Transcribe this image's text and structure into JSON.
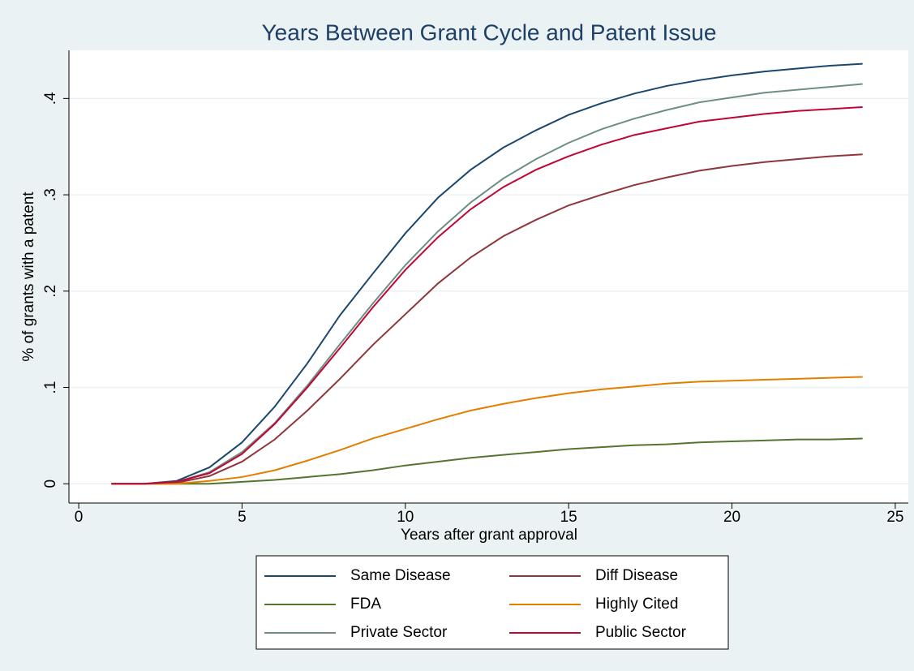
{
  "chart_data": {
    "type": "line",
    "title": "Years Between Grant Cycle and Patent Issue",
    "x_label": "Years after grant approval",
    "y_label": "% of grants with a patent",
    "x": [
      1,
      2,
      3,
      4,
      5,
      6,
      7,
      8,
      9,
      10,
      11,
      12,
      13,
      14,
      15,
      16,
      17,
      18,
      19,
      20,
      21,
      22,
      23,
      24
    ],
    "series": [
      {
        "name": "Same Disease",
        "color": "#1a476f",
        "values": [
          0,
          0,
          0.003,
          0.017,
          0.043,
          0.08,
          0.125,
          0.175,
          0.218,
          0.26,
          0.297,
          0.326,
          0.349,
          0.367,
          0.383,
          0.395,
          0.405,
          0.413,
          0.419,
          0.424,
          0.428,
          0.431,
          0.434,
          0.436
        ]
      },
      {
        "name": "Diff Disease",
        "color": "#90353b",
        "values": [
          0,
          0,
          0.001,
          0.008,
          0.023,
          0.046,
          0.076,
          0.109,
          0.144,
          0.176,
          0.208,
          0.235,
          0.257,
          0.274,
          0.289,
          0.3,
          0.31,
          0.318,
          0.325,
          0.33,
          0.334,
          0.337,
          0.34,
          0.342
        ]
      },
      {
        "name": "FDA",
        "color": "#55752f",
        "values": [
          0,
          0,
          0,
          0,
          0.002,
          0.004,
          0.007,
          0.01,
          0.014,
          0.019,
          0.023,
          0.027,
          0.03,
          0.033,
          0.036,
          0.038,
          0.04,
          0.041,
          0.043,
          0.044,
          0.045,
          0.046,
          0.046,
          0.047
        ]
      },
      {
        "name": "Highly Cited",
        "color": "#e37e00",
        "values": [
          0,
          0,
          0,
          0.003,
          0.007,
          0.014,
          0.024,
          0.035,
          0.047,
          0.057,
          0.067,
          0.076,
          0.083,
          0.089,
          0.094,
          0.098,
          0.101,
          0.104,
          0.106,
          0.107,
          0.108,
          0.109,
          0.11,
          0.111
        ]
      },
      {
        "name": "Private Sector",
        "color": "#6e8e84",
        "values": [
          0,
          0,
          0.002,
          0.012,
          0.033,
          0.063,
          0.102,
          0.145,
          0.187,
          0.227,
          0.262,
          0.292,
          0.317,
          0.337,
          0.354,
          0.368,
          0.379,
          0.388,
          0.396,
          0.401,
          0.406,
          0.409,
          0.412,
          0.415
        ]
      },
      {
        "name": "Public Sector",
        "color": "#c10534",
        "values": [
          0,
          0,
          0.002,
          0.011,
          0.031,
          0.062,
          0.1,
          0.141,
          0.183,
          0.222,
          0.256,
          0.285,
          0.308,
          0.326,
          0.34,
          0.352,
          0.362,
          0.369,
          0.376,
          0.38,
          0.384,
          0.387,
          0.389,
          0.391
        ]
      }
    ],
    "xlim": [
      -0.3,
      25.4
    ],
    "xticks": [
      0,
      5,
      10,
      15,
      20,
      25
    ],
    "ylim": [
      -0.02,
      0.45
    ],
    "yticks": [
      0,
      {
        "value": 0.1,
        "label": ".1"
      },
      {
        "value": 0.2,
        "label": ".2"
      },
      {
        "value": 0.3,
        "label": ".3"
      },
      {
        "value": 0.4,
        "label": ".4"
      }
    ],
    "grid": true,
    "legend": "bottom"
  }
}
